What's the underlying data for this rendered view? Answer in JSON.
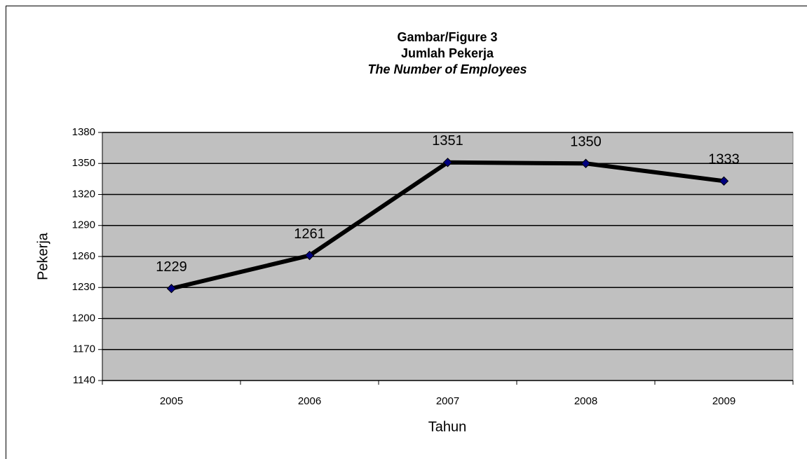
{
  "chart_data": {
    "type": "line",
    "title": [
      "Gambar/Figure 3",
      "Jumlah Pekerja",
      "The Number of Employees"
    ],
    "x_label": "Tahun",
    "y_label": "Pekerja",
    "categories": [
      "2005",
      "2006",
      "2007",
      "2008",
      "2009"
    ],
    "values": [
      1229,
      1261,
      1351,
      1350,
      1333
    ],
    "color": "#000000",
    "marker_color": "#000080",
    "plot_background": "#c0c0c0",
    "ylim": [
      1140,
      1380
    ],
    "yticks": [
      1140,
      1170,
      1200,
      1230,
      1260,
      1290,
      1320,
      1350,
      1380
    ],
    "grid": true
  }
}
